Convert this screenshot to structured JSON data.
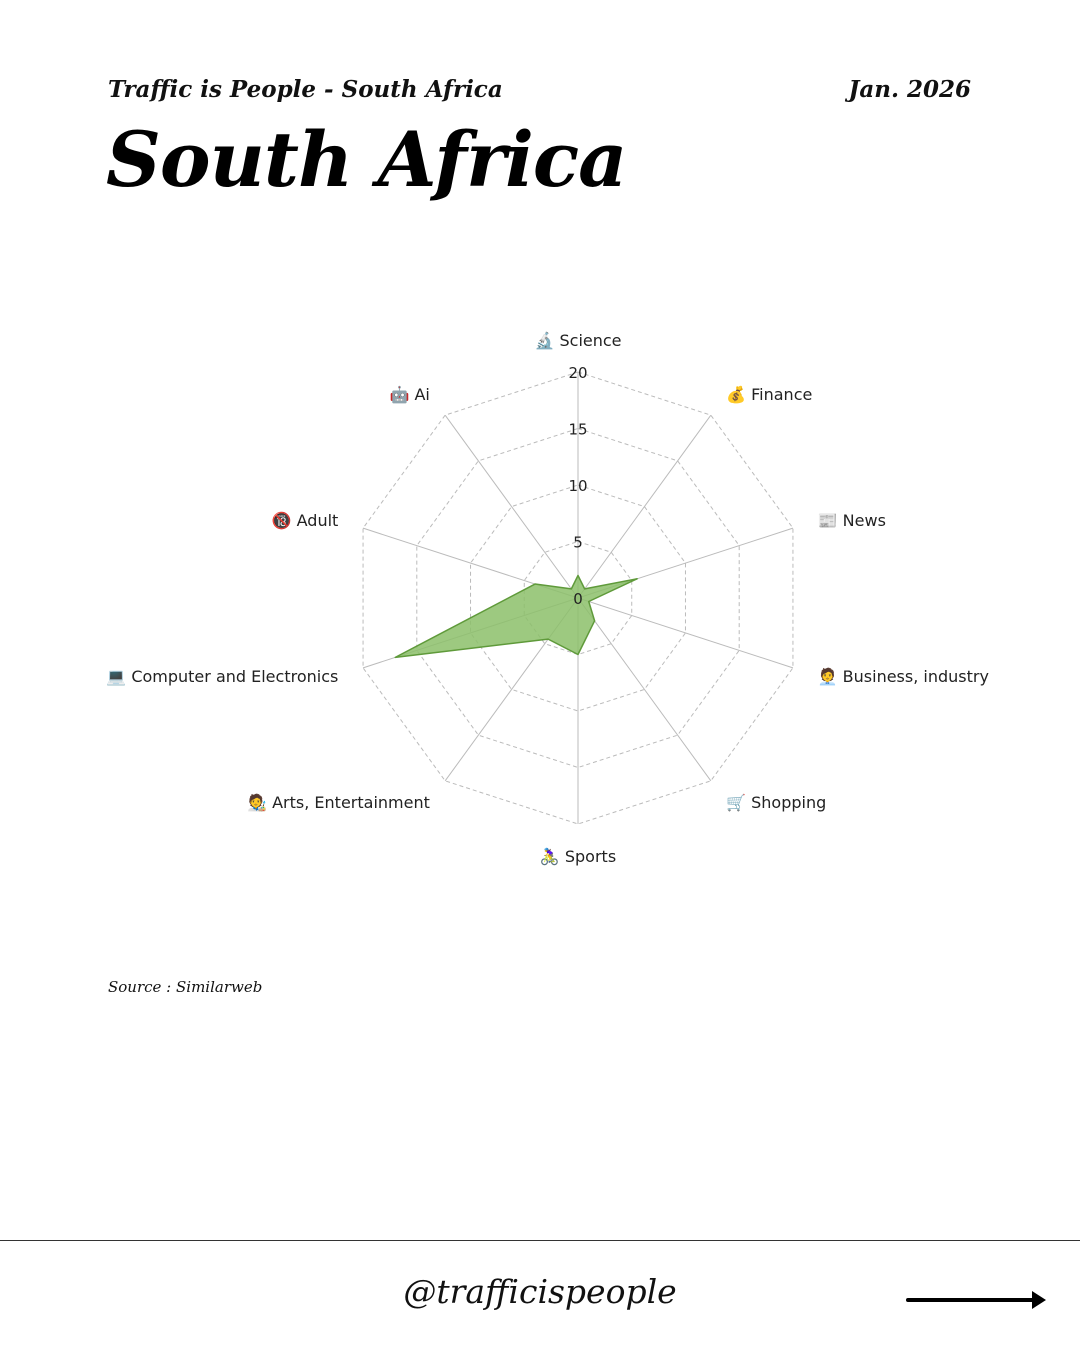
{
  "header": {
    "kicker": "Traffic is People - South Africa",
    "date": "Jan. 2026",
    "title": "South Africa"
  },
  "chart_data": {
    "type": "radar",
    "title": "",
    "axes": [
      {
        "label": "Science",
        "icon": "microscope-icon",
        "emoji": "🔬"
      },
      {
        "label": "Finance",
        "icon": "money-bag-icon",
        "emoji": "💰"
      },
      {
        "label": "News",
        "icon": "newspaper-icon",
        "emoji": "📰"
      },
      {
        "label": "Business, industry",
        "icon": "office-worker-icon",
        "emoji": "🧑‍💼"
      },
      {
        "label": "Shopping",
        "icon": "shopping-cart-icon",
        "emoji": "🛒"
      },
      {
        "label": "Sports",
        "icon": "cyclist-icon",
        "emoji": "🚴‍♀️"
      },
      {
        "label": "Arts, Entertainment",
        "icon": "artist-icon",
        "emoji": "🧑‍🎨"
      },
      {
        "label": "Computer and Electronics",
        "icon": "laptop-icon",
        "emoji": "💻"
      },
      {
        "label": "Adult",
        "icon": "no-under-18-icon",
        "emoji": "🔞"
      },
      {
        "label": "Ai",
        "icon": "robot-icon",
        "emoji": "🤖"
      }
    ],
    "series": [
      {
        "values": [
          2.0,
          1.0,
          5.5,
          1.0,
          2.5,
          5.0,
          4.5,
          17.0,
          4.0,
          1.0
        ],
        "color": "#8cbf6a",
        "stroke": "#5f9a3a"
      }
    ],
    "rlim": [
      0,
      20
    ],
    "ticks": [
      "0",
      "5",
      "10",
      "15",
      "20"
    ],
    "tick_values": [
      0,
      5,
      10,
      15,
      20
    ],
    "grid": true,
    "grid_color": "#bbbbbb"
  },
  "source": "Source : Similarweb",
  "footer": {
    "handle": "@trafficispeople",
    "arrow_icon": "arrow-right-icon"
  }
}
